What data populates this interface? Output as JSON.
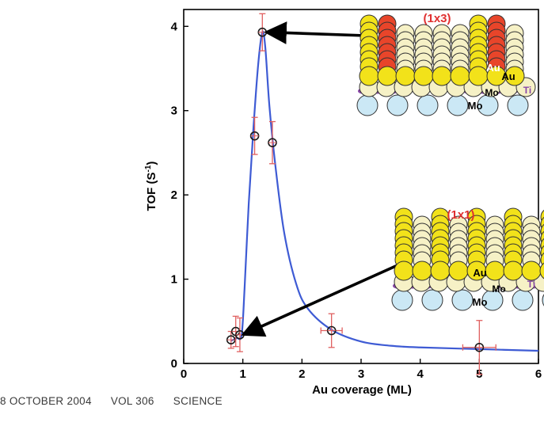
{
  "chart_data": {
    "type": "scatter",
    "xlabel": "Au coverage (ML)",
    "ylabel_base": "TOF (S",
    "ylabel_sup": "-1",
    "ylabel_end": ")",
    "xlim": [
      0,
      6
    ],
    "ylim": [
      0,
      4.2
    ],
    "xticks": [
      0,
      1,
      2,
      3,
      4,
      5,
      6
    ],
    "yticks": [
      0,
      1,
      2,
      3,
      4
    ],
    "grid": false,
    "points": [
      {
        "x": 0.8,
        "y": 0.28,
        "yerr": 0.1,
        "xerr": 0
      },
      {
        "x": 0.88,
        "y": 0.38,
        "yerr": 0.18,
        "xerr": 0
      },
      {
        "x": 0.95,
        "y": 0.34,
        "yerr": 0.2,
        "xerr": 0
      },
      {
        "x": 1.2,
        "y": 2.7,
        "yerr": 0.22,
        "xerr": 0
      },
      {
        "x": 1.33,
        "y": 3.93,
        "yerr": 0.22,
        "xerr": 0
      },
      {
        "x": 1.5,
        "y": 2.62,
        "yerr": 0.25,
        "xerr": 0
      },
      {
        "x": 2.5,
        "y": 0.39,
        "yerr": 0.2,
        "xerr": 0.18
      },
      {
        "x": 5.0,
        "y": 0.19,
        "yerr": 0.32,
        "xerr": 0.28
      }
    ],
    "fit_curve": [
      [
        0.8,
        0.27
      ],
      [
        0.9,
        0.3
      ],
      [
        0.98,
        0.34
      ],
      [
        1.03,
        0.9
      ],
      [
        1.1,
        1.9
      ],
      [
        1.18,
        2.8
      ],
      [
        1.26,
        3.55
      ],
      [
        1.33,
        3.93
      ],
      [
        1.38,
        3.75
      ],
      [
        1.45,
        3.05
      ],
      [
        1.55,
        2.35
      ],
      [
        1.7,
        1.55
      ],
      [
        1.9,
        0.95
      ],
      [
        2.1,
        0.65
      ],
      [
        2.5,
        0.4
      ],
      [
        3.0,
        0.26
      ],
      [
        3.5,
        0.21
      ],
      [
        4.0,
        0.19
      ],
      [
        5.0,
        0.17
      ],
      [
        6.0,
        0.15
      ]
    ],
    "colors": {
      "curve": "#3e5bd4",
      "marker": "#1a1a1a",
      "errorbar": "#e06060",
      "arrow": "#000000"
    },
    "annotations": {
      "top_label": "(1x3)",
      "bottom_label": "(1x1)",
      "au": "Au",
      "mo": "Mo",
      "ti": "Ti",
      "colors": {
        "label": "#e03030",
        "gold": "#f2e21a",
        "gold_stroke": "#9a8c00",
        "red_atom": "#e8452a",
        "cream": "#f6f1c6",
        "light_blue": "#cbe8f5",
        "purple": "#8a48a8",
        "ti_text": "#8a48a8"
      }
    }
  },
  "footer": {
    "date": "8 OCTOBER 2004",
    "volume": "VOL 306",
    "journal": "SCIENCE"
  }
}
